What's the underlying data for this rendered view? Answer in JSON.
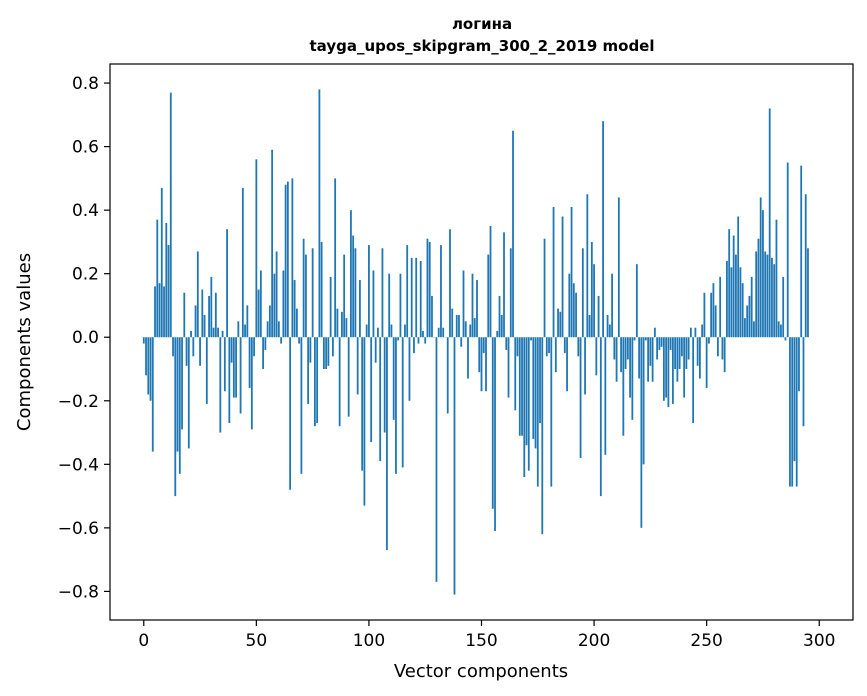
{
  "chart_data": {
    "type": "bar",
    "title_line1": "логина",
    "title_line2": "tayga_upos_skipgram_300_2_2019 model",
    "xlabel": "Vector components",
    "ylabel": "Components values",
    "xlim": [
      -15,
      315
    ],
    "ylim": [
      -0.89,
      0.86
    ],
    "xticks": [
      0,
      50,
      100,
      150,
      200,
      250,
      300
    ],
    "xtick_labels": [
      "0",
      "50",
      "100",
      "150",
      "200",
      "250",
      "300"
    ],
    "yticks": [
      -0.8,
      -0.6,
      -0.4,
      -0.2,
      0.0,
      0.2,
      0.4,
      0.6,
      0.8
    ],
    "ytick_labels": [
      "−0.8",
      "−0.6",
      "−0.4",
      "−0.2",
      "0.0",
      "0.2",
      "0.4",
      "0.6",
      "0.8"
    ],
    "bar_color": "#1f77b4",
    "grid": false,
    "values": [
      -0.02,
      -0.12,
      -0.18,
      -0.2,
      -0.36,
      0.16,
      0.37,
      0.17,
      0.47,
      0.16,
      0.36,
      0.29,
      0.77,
      -0.06,
      -0.5,
      -0.36,
      -0.43,
      -0.29,
      0.14,
      -0.09,
      -0.35,
      0.02,
      -0.06,
      0.1,
      0.27,
      -0.09,
      0.15,
      0.07,
      -0.21,
      0.13,
      0.19,
      0.03,
      0.14,
      0.03,
      -0.3,
      0.02,
      -0.17,
      0.34,
      -0.27,
      -0.08,
      -0.19,
      -0.19,
      0.05,
      -0.24,
      0.47,
      0.04,
      0.1,
      -0.16,
      -0.29,
      -0.06,
      0.56,
      0.15,
      0.21,
      -0.1,
      -0.04,
      0.05,
      0.1,
      0.59,
      0.2,
      0.27,
      0.05,
      -0.02,
      0.21,
      0.48,
      0.49,
      -0.48,
      0.5,
      0.18,
      0.09,
      -0.02,
      -0.43,
      0.31,
      0.26,
      -0.21,
      -0.08,
      0.28,
      -0.28,
      -0.27,
      0.78,
      0.3,
      -0.1,
      -0.1,
      -0.09,
      0.19,
      -0.06,
      0.5,
      0.09,
      -0.28,
      0.08,
      0.26,
      0.06,
      -0.25,
      0.4,
      0.32,
      0.28,
      -0.18,
      0.18,
      -0.42,
      -0.53,
      0.04,
      0.29,
      -0.33,
      0.21,
      -0.08,
      0.03,
      -0.39,
      0.28,
      -0.3,
      -0.67,
      0.2,
      0.04,
      -0.26,
      -0.43,
      -0.01,
      0.2,
      -0.41,
      0.04,
      0.29,
      -0.2,
      0.25,
      -0.05,
      0.25,
      -0.02,
      0.24,
      0.02,
      -0.02,
      0.31,
      0.3,
      0.13,
      0.0,
      -0.77,
      0.03,
      0.29,
      0.03,
      0.0,
      -0.24,
      0.34,
      0.09,
      -0.81,
      0.07,
      0.07,
      -0.03,
      0.21,
      0.05,
      -0.13,
      0.04,
      0.2,
      0.06,
      0.18,
      -0.11,
      -0.17,
      -0.05,
      -0.17,
      0.26,
      0.35,
      -0.54,
      -0.61,
      0.02,
      0.13,
      0.07,
      0.33,
      -0.04,
      -0.19,
      0.28,
      0.65,
      -0.23,
      -0.06,
      -0.31,
      -0.31,
      -0.44,
      -0.34,
      -0.42,
      -0.01,
      -0.32,
      -0.35,
      -0.47,
      -0.27,
      -0.62,
      0.31,
      -0.06,
      -0.05,
      -0.47,
      0.41,
      -0.11,
      0.09,
      0.08,
      0.38,
      -0.05,
      -0.17,
      0.2,
      0.41,
      0.17,
      0.14,
      -0.06,
      -0.38,
      0.28,
      -0.18,
      0.45,
      0.07,
      0.3,
      0.23,
      -0.12,
      0.13,
      -0.5,
      0.68,
      -0.37,
      0.07,
      0.04,
      0.2,
      -0.07,
      -0.14,
      0.44,
      -0.11,
      -0.31,
      -0.1,
      -0.07,
      -0.19,
      -0.26,
      -0.01,
      0.23,
      -0.13,
      -0.6,
      -0.4,
      -0.01,
      -0.14,
      -0.09,
      -0.14,
      0.03,
      -0.07,
      -0.04,
      -0.03,
      -0.2,
      -0.19,
      -0.22,
      -0.04,
      -0.21,
      -0.1,
      -0.14,
      -0.1,
      -0.06,
      -0.19,
      -0.1,
      -0.07,
      0.03,
      -0.27,
      0.03,
      -0.09,
      -0.13,
      0.04,
      0.14,
      -0.16,
      -0.02,
      0.14,
      0.17,
      0.1,
      -0.06,
      0.19,
      -0.07,
      -0.11,
      0.24,
      0.34,
      0.22,
      0.32,
      0.26,
      0.38,
      0.22,
      0.17,
      0.06,
      0.1,
      0.13,
      0.19,
      0.05,
      0.27,
      0.31,
      0.44,
      0.4,
      0.27,
      0.26,
      0.72,
      0.25,
      0.23,
      0.37,
      0.05,
      0.04,
      0.19,
      -0.01,
      0.55,
      -0.47,
      -0.47,
      -0.39,
      -0.47,
      -0.17,
      0.54,
      -0.28,
      0.45,
      0.28
    ]
  }
}
